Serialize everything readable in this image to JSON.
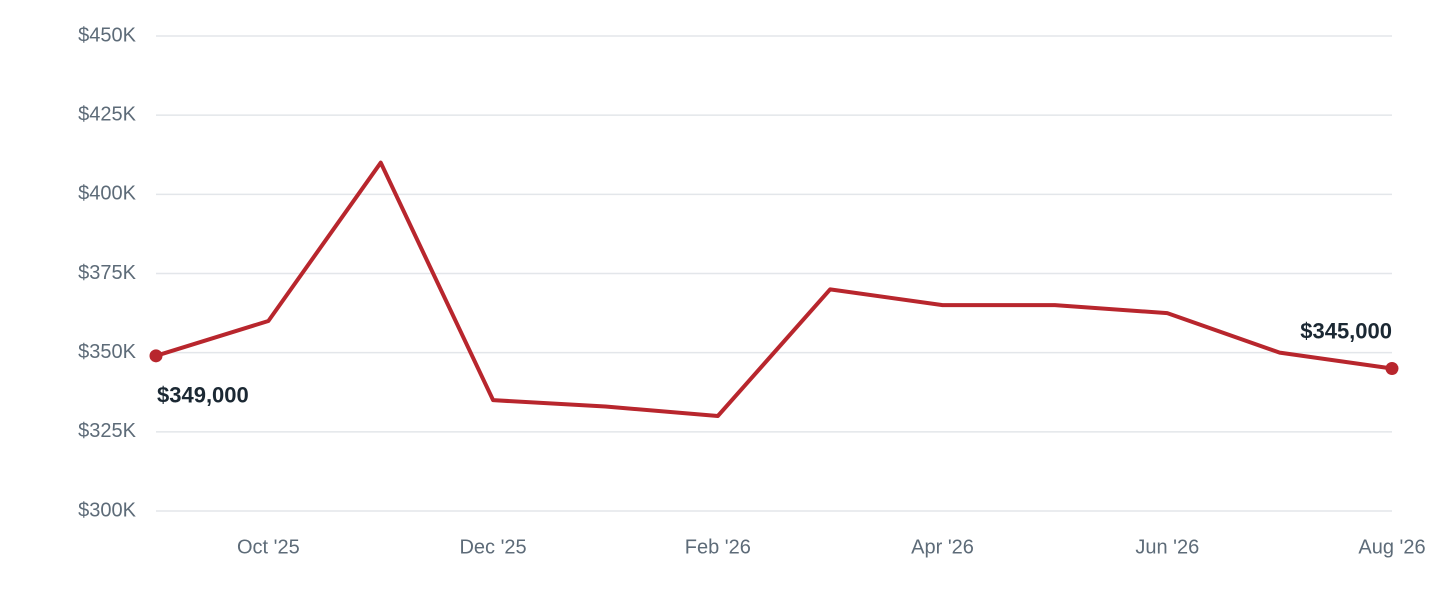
{
  "chart_data": {
    "type": "line",
    "categories": [
      null,
      "Oct '25",
      null,
      "Dec '25",
      null,
      "Feb '26",
      null,
      "Apr '26",
      null,
      "Jun '26",
      null,
      "Aug '26"
    ],
    "values": [
      349000,
      360000,
      410000,
      335000,
      333000,
      330000,
      370000,
      365000,
      365000,
      362500,
      350000,
      345000
    ],
    "value_labels": [
      "$349,000",
      null,
      null,
      null,
      null,
      null,
      null,
      null,
      null,
      null,
      null,
      "$345,000"
    ],
    "color": "#b8262d",
    "ylim": [
      300000,
      450000
    ],
    "yticks": [
      {
        "value": 300000,
        "label": "$300K"
      },
      {
        "value": 325000,
        "label": "$325K"
      },
      {
        "value": 350000,
        "label": "$350K"
      },
      {
        "value": 375000,
        "label": "$375K"
      },
      {
        "value": 400000,
        "label": "$400K"
      },
      {
        "value": 425000,
        "label": "$425K"
      },
      {
        "value": 450000,
        "label": "$450K"
      }
    ],
    "grid": true
  }
}
